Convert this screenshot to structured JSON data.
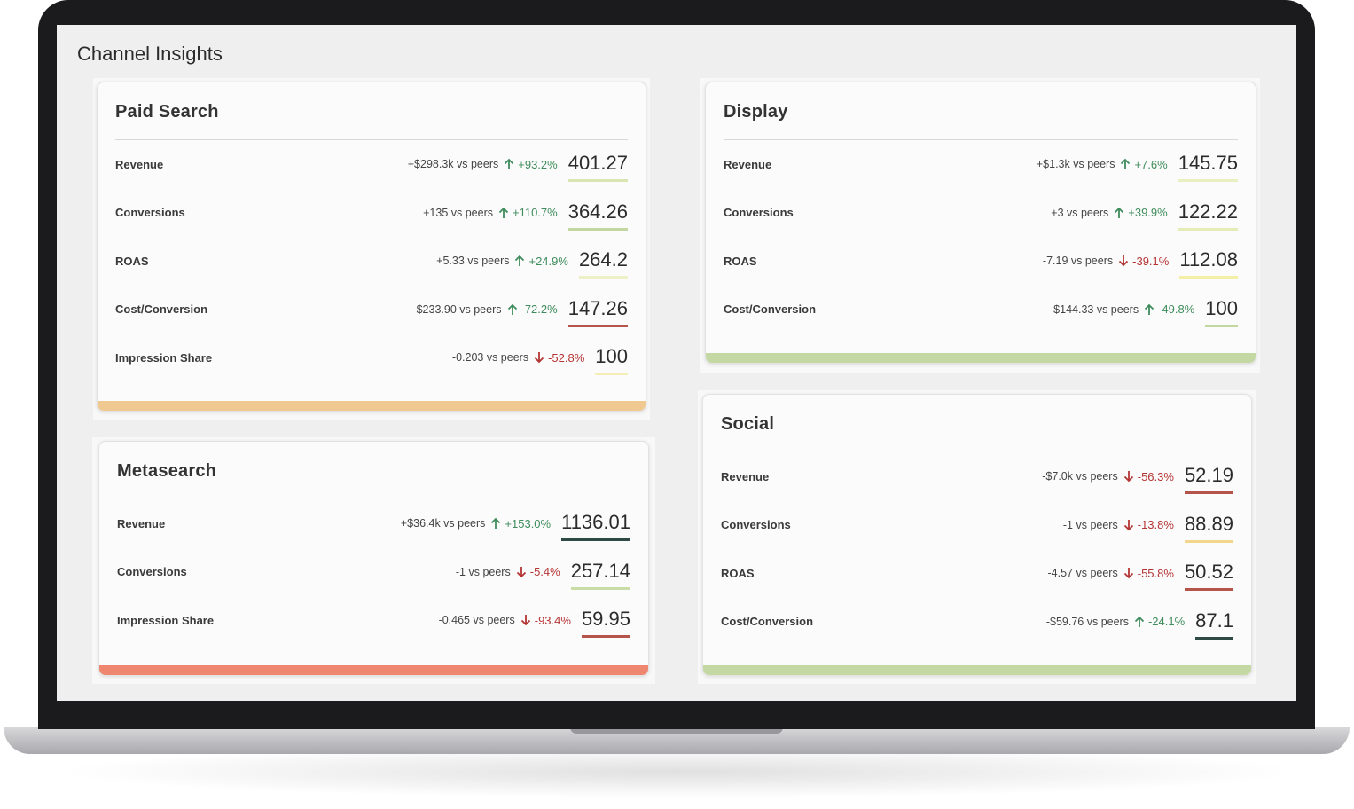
{
  "header": {
    "title": "Channel Insights"
  },
  "cards": [
    {
      "title": "Paid Search",
      "accent": "#f0c892",
      "metrics": [
        {
          "label": "Revenue",
          "peers": "+$298.3k vs peers",
          "arrow": "up",
          "change": "+93.2%",
          "value": "401.27",
          "underline": "#d9e5b3"
        },
        {
          "label": "Conversions",
          "peers": "+135 vs peers",
          "arrow": "up",
          "change": "+110.7%",
          "value": "364.26",
          "underline": "#c3d7a0"
        },
        {
          "label": "ROAS",
          "peers": "+5.33 vs peers",
          "arrow": "up",
          "change": "+24.9%",
          "value": "264.2",
          "underline": "#eef0c8"
        },
        {
          "label": "Cost/Conversion",
          "peers": "-$233.90 vs peers",
          "arrow": "up",
          "change": "-72.2%",
          "value": "147.26",
          "underline": "#b5544a"
        },
        {
          "label": "Impression Share",
          "peers": "-0.203 vs peers",
          "arrow": "down",
          "change": "-52.8%",
          "value": "100",
          "underline": "#f5eeb8"
        }
      ]
    },
    {
      "title": "Display",
      "accent": "#c4d8a3",
      "metrics": [
        {
          "label": "Revenue",
          "peers": "+$1.3k vs peers",
          "arrow": "up",
          "change": "+7.6%",
          "value": "145.75",
          "underline": "#e9efc0"
        },
        {
          "label": "Conversions",
          "peers": "+3 vs peers",
          "arrow": "up",
          "change": "+39.9%",
          "value": "122.22",
          "underline": "#e6ecb8"
        },
        {
          "label": "ROAS",
          "peers": "-7.19 vs peers",
          "arrow": "down",
          "change": "-39.1%",
          "value": "112.08",
          "underline": "#f3f0a6"
        },
        {
          "label": "Cost/Conversion",
          "peers": "-$144.33 vs peers",
          "arrow": "up",
          "change": "-49.8%",
          "value": "100",
          "underline": "#c3d7a0"
        }
      ]
    },
    {
      "title": "Metasearch",
      "accent": "#ee8670",
      "metrics": [
        {
          "label": "Revenue",
          "peers": "+$36.4k vs peers",
          "arrow": "up",
          "change": "+153.0%",
          "value": "1136.01",
          "underline": "#2f4a45"
        },
        {
          "label": "Conversions",
          "peers": "-1 vs peers",
          "arrow": "down",
          "change": "-5.4%",
          "value": "257.14",
          "underline": "#c9dca5"
        },
        {
          "label": "Impression Share",
          "peers": "-0.465 vs peers",
          "arrow": "down",
          "change": "-93.4%",
          "value": "59.95",
          "underline": "#b5544a"
        }
      ]
    },
    {
      "title": "Social",
      "accent": "#c4d8a3",
      "metrics": [
        {
          "label": "Revenue",
          "peers": "-$7.0k vs peers",
          "arrow": "down",
          "change": "-56.3%",
          "value": "52.19",
          "underline": "#b5544a"
        },
        {
          "label": "Conversions",
          "peers": "-1 vs peers",
          "arrow": "down",
          "change": "-13.8%",
          "value": "88.89",
          "underline": "#f2d68c"
        },
        {
          "label": "ROAS",
          "peers": "-4.57 vs peers",
          "arrow": "down",
          "change": "-55.8%",
          "value": "50.52",
          "underline": "#b5544a"
        },
        {
          "label": "Cost/Conversion",
          "peers": "-$59.76 vs peers",
          "arrow": "up",
          "change": "-24.1%",
          "value": "87.1",
          "underline": "#2f4a45"
        }
      ]
    }
  ]
}
